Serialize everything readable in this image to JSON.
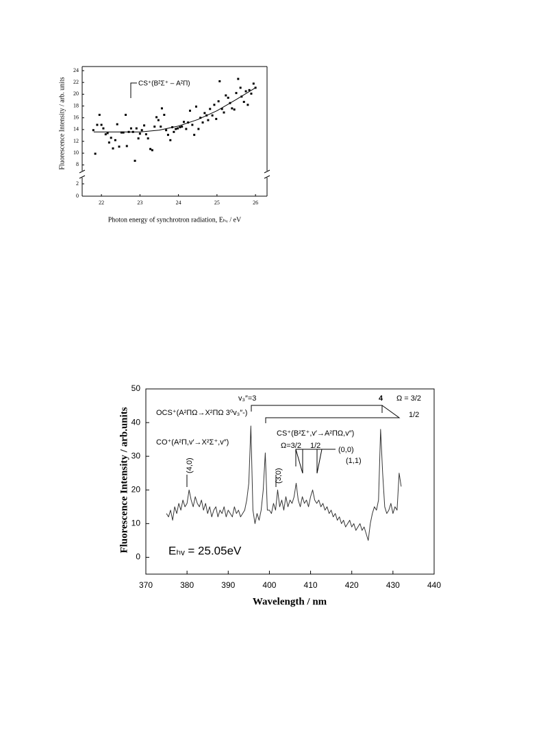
{
  "chart_data": [
    {
      "type": "scatter",
      "xlabel": "Photon energy of synchrotron radiation, Eₕᵥ / eV",
      "ylabel": "Fluorescence Intensity / arb. units",
      "annotations": [
        "CS⁺(B²Σ⁺ – A²Π)"
      ],
      "xlim": [
        21.5,
        26.3
      ],
      "xticks": [
        22,
        23,
        24,
        25,
        26
      ],
      "ylim": [
        0,
        24.7
      ],
      "ybreak": [
        3,
        7
      ],
      "yticks": [
        0,
        2,
        8,
        10,
        12,
        14,
        16,
        18,
        20,
        22,
        24
      ],
      "series": [
        {
          "marker": "square",
          "color": "#000000",
          "x": [
            21.79,
            21.84,
            21.89,
            21.95,
            22.0,
            22.05,
            22.11,
            22.16,
            22.2,
            22.25,
            22.3,
            22.36,
            22.41,
            22.46,
            22.52,
            22.57,
            22.63,
            22.66,
            22.71,
            22.77,
            22.82,
            22.87,
            22.91,
            22.96,
            23.0,
            23.05,
            23.11,
            23.16,
            23.21,
            23.27,
            23.32,
            23.38,
            23.43,
            23.48,
            23.54,
            23.57,
            23.63,
            23.68,
            23.73,
            23.79,
            23.84,
            23.88,
            23.93,
            23.98,
            24.04,
            24.09,
            24.14,
            24.2,
            24.25,
            24.3,
            24.36,
            24.41,
            24.46,
            24.52,
            24.57,
            24.63,
            24.68,
            24.73,
            24.77,
            24.82,
            24.88,
            24.93,
            24.98,
            25.04,
            25.07,
            25.13,
            25.18,
            25.23,
            25.29,
            25.34,
            25.39,
            25.45,
            25.5,
            25.55,
            25.61,
            25.64,
            25.7,
            25.75,
            25.8,
            25.84,
            25.89,
            25.95,
            26.0
          ],
          "values": [
            13.9,
            9.9,
            14.8,
            16.5,
            14.8,
            14.2,
            13.2,
            13.4,
            11.8,
            12.6,
            10.8,
            12.2,
            14.9,
            11.1,
            13.5,
            13.5,
            16.5,
            11.2,
            13.6,
            14.2,
            13.6,
            8.7,
            14.2,
            12.5,
            13.3,
            13.9,
            14.7,
            13.2,
            12.5,
            10.7,
            10.5,
            14.5,
            16.1,
            15.6,
            14.5,
            17.6,
            16.5,
            13.9,
            13.1,
            12.2,
            14.4,
            13.6,
            14.1,
            14.2,
            14.4,
            14.5,
            15.3,
            14.1,
            15.2,
            17.2,
            14.8,
            13.1,
            17.9,
            14.1,
            16.0,
            15.2,
            16.8,
            16.4,
            15.6,
            17.5,
            16.4,
            18.2,
            15.8,
            18.8,
            22.2,
            17.5,
            16.9,
            19.8,
            19.4,
            18.5,
            17.6,
            17.4,
            20.2,
            22.6,
            21.1,
            19.6,
            18.7,
            20.5,
            18.2,
            20.7,
            20.1,
            21.8,
            21.1
          ]
        },
        {
          "color": "#000000",
          "x": [
            21.8,
            22.5,
            23.0,
            23.5,
            24.0,
            24.5,
            25.0,
            25.5,
            26.0
          ],
          "values": [
            13.6,
            13.6,
            13.6,
            13.9,
            14.6,
            15.7,
            17.2,
            19.1,
            21.1
          ]
        }
      ]
    },
    {
      "type": "line",
      "xlabel": "Wavelength / nm",
      "ylabel": "Fluorescence Intensity / arb.units",
      "annotations": [
        "v₃″=3",
        "4",
        "Ω = 3/2",
        "1/2",
        "OCS⁺(A²ΠΩ→X²ΠΩ 3⁰v₃″-)",
        "CO⁺(A²Π,v′→X²Σ⁺,v″)",
        "CS⁺(B²Σ⁺,v′→A²ΠΩ,v″)",
        "Ω=3/2",
        "1/2",
        "(0,0)",
        "(1,1)",
        "(4,0)",
        "(3,0)",
        "Eₕᵥ = 25.05eV"
      ],
      "xlim": [
        370,
        440
      ],
      "xticks": [
        370,
        380,
        390,
        400,
        410,
        420,
        430,
        440
      ],
      "ylim": [
        -5,
        50
      ],
      "yticks": [
        0,
        10,
        20,
        30,
        40,
        50
      ],
      "series": [
        {
          "color": "#333333",
          "x": [
            375,
            375.5,
            376,
            376.5,
            377,
            377.5,
            378,
            378.5,
            379,
            379.5,
            380,
            380.5,
            381,
            381.5,
            382,
            382.5,
            383,
            383.5,
            384,
            384.5,
            385,
            385.5,
            386,
            386.5,
            387,
            387.5,
            388,
            388.5,
            389,
            389.5,
            390,
            390.5,
            391,
            391.5,
            392,
            392.5,
            393,
            393.5,
            394,
            394.5,
            395,
            395.5,
            396,
            396.5,
            397,
            397.5,
            398,
            398.5,
            399,
            399.5,
            400,
            400.5,
            401,
            401.5,
            402,
            402.5,
            403,
            403.5,
            404,
            404.5,
            405,
            405.5,
            406,
            406.5,
            407,
            407.5,
            408,
            408.5,
            409,
            409.5,
            410,
            410.5,
            411,
            411.5,
            412,
            412.5,
            413,
            413.5,
            414,
            414.5,
            415,
            415.5,
            416,
            416.5,
            417,
            417.5,
            418,
            418.5,
            419,
            419.5,
            420,
            420.5,
            421,
            421.5,
            422,
            422.5,
            423,
            423.5,
            424,
            424.5,
            425,
            425.5,
            426,
            426.5,
            427,
            427.5,
            428,
            428.5,
            429,
            429.5,
            430,
            430.5,
            431,
            431.5,
            432
          ],
          "values": [
            13,
            12,
            14,
            11,
            15,
            13,
            16,
            14,
            17,
            15,
            16,
            20,
            17,
            15,
            18,
            16,
            15,
            17,
            14,
            16,
            13,
            15,
            12,
            14,
            15,
            12,
            14,
            13,
            15,
            12,
            14,
            13,
            12,
            15,
            13,
            14,
            12,
            13,
            14,
            17,
            22,
            39,
            14,
            10,
            13,
            11,
            14,
            20,
            31,
            14,
            14,
            13,
            16,
            14,
            20,
            15,
            17,
            14,
            18,
            15,
            17,
            16,
            18,
            22,
            17,
            15,
            18,
            16,
            17,
            15,
            18,
            20,
            17,
            16,
            17,
            15,
            16,
            14,
            15,
            13,
            14,
            12,
            13,
            11,
            12,
            10,
            11,
            9,
            10,
            11,
            9,
            10,
            8,
            9,
            10,
            8,
            9,
            7,
            5,
            10,
            13,
            15,
            14,
            17,
            38,
            25,
            15,
            13,
            14,
            16,
            13,
            15,
            14,
            25,
            21
          ]
        }
      ]
    }
  ]
}
